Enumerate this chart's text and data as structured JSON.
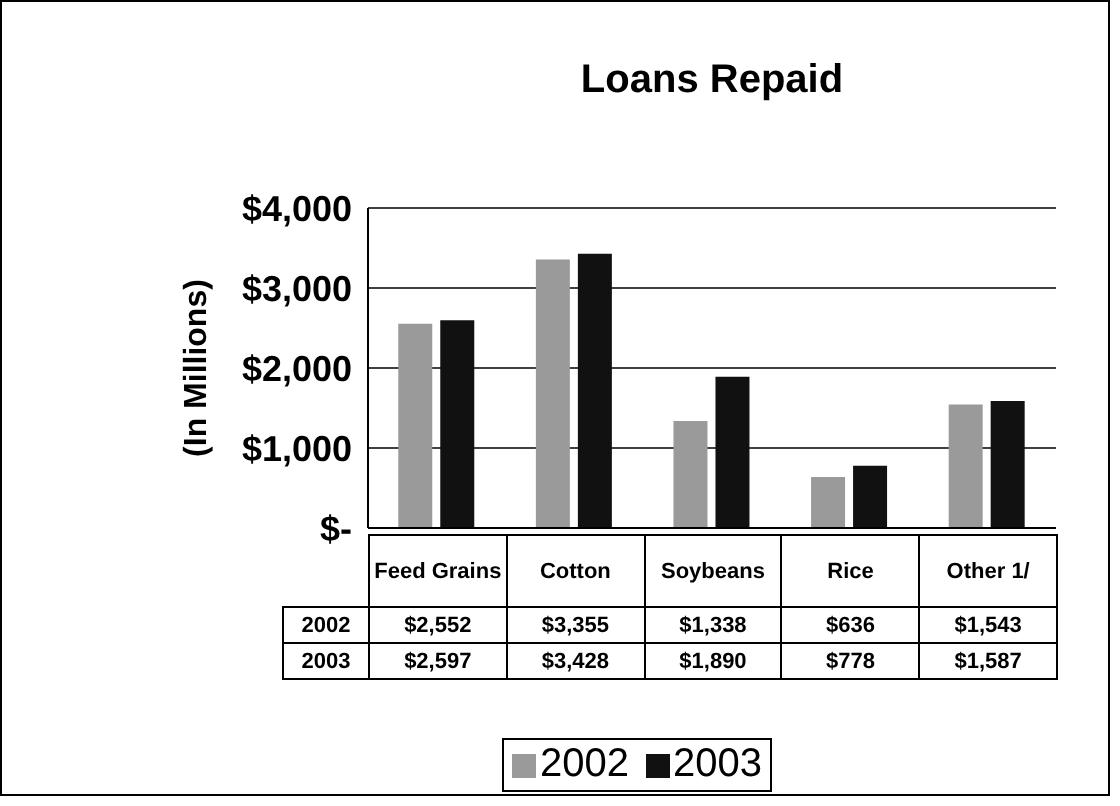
{
  "chart_data": {
    "type": "bar",
    "title": "Loans Repaid",
    "ylabel": "(In Millions)",
    "categories": [
      "Feed Grains",
      "Cotton",
      "Soybeans",
      "Rice",
      "Other 1/"
    ],
    "series": [
      {
        "name": "2002",
        "color": "#9a9a9a",
        "values": [
          2552,
          3355,
          1338,
          636,
          1543
        ],
        "value_labels": [
          "$2,552",
          "$3,355",
          "$1,338",
          "$636",
          "$1,543"
        ]
      },
      {
        "name": "2003",
        "color": "#111111",
        "values": [
          2597,
          3428,
          1890,
          778,
          1587
        ],
        "value_labels": [
          "$2,597",
          "$3,428",
          "$1,890",
          "$778",
          "$1,587"
        ]
      }
    ],
    "ylim": [
      0,
      4000
    ],
    "yticks": [
      {
        "value": 0,
        "label": "$-"
      },
      {
        "value": 1000,
        "label": "$1,000"
      },
      {
        "value": 2000,
        "label": "$2,000"
      },
      {
        "value": 3000,
        "label": "$3,000"
      },
      {
        "value": 4000,
        "label": "$4,000"
      }
    ],
    "grid": "y",
    "legend": "bottom"
  }
}
